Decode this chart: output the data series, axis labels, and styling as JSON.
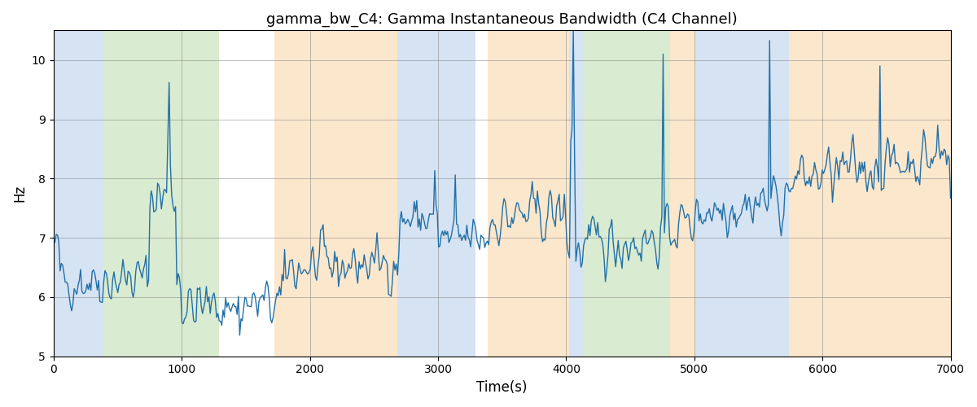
{
  "title": "gamma_bw_C4: Gamma Instantaneous Bandwidth (C4 Channel)",
  "xlabel": "Time(s)",
  "ylabel": "Hz",
  "xlim": [
    0,
    7000
  ],
  "ylim": [
    5,
    10.5
  ],
  "line_color": "#2370a8",
  "line_width": 1.0,
  "bg_regions": [
    {
      "xmin": 0,
      "xmax": 390,
      "color": "#adc8e8",
      "alpha": 0.5
    },
    {
      "xmin": 390,
      "xmax": 1290,
      "color": "#b5d9a3",
      "alpha": 0.5
    },
    {
      "xmin": 1720,
      "xmax": 2680,
      "color": "#f8d09a",
      "alpha": 0.5
    },
    {
      "xmin": 2680,
      "xmax": 3290,
      "color": "#adc8e8",
      "alpha": 0.5
    },
    {
      "xmin": 3390,
      "xmax": 4020,
      "color": "#f8d09a",
      "alpha": 0.5
    },
    {
      "xmin": 4020,
      "xmax": 4130,
      "color": "#adc8e8",
      "alpha": 0.5
    },
    {
      "xmin": 4130,
      "xmax": 4810,
      "color": "#b5d9a3",
      "alpha": 0.5
    },
    {
      "xmin": 4810,
      "xmax": 5010,
      "color": "#f8d09a",
      "alpha": 0.5
    },
    {
      "xmin": 5010,
      "xmax": 5740,
      "color": "#adc8e8",
      "alpha": 0.5
    },
    {
      "xmin": 5740,
      "xmax": 7000,
      "color": "#f8d09a",
      "alpha": 0.5
    }
  ],
  "yticks": [
    5,
    6,
    7,
    8,
    9,
    10
  ],
  "xticks": [
    0,
    1000,
    2000,
    3000,
    4000,
    5000,
    6000,
    7000
  ],
  "grid": true,
  "seed": 42
}
